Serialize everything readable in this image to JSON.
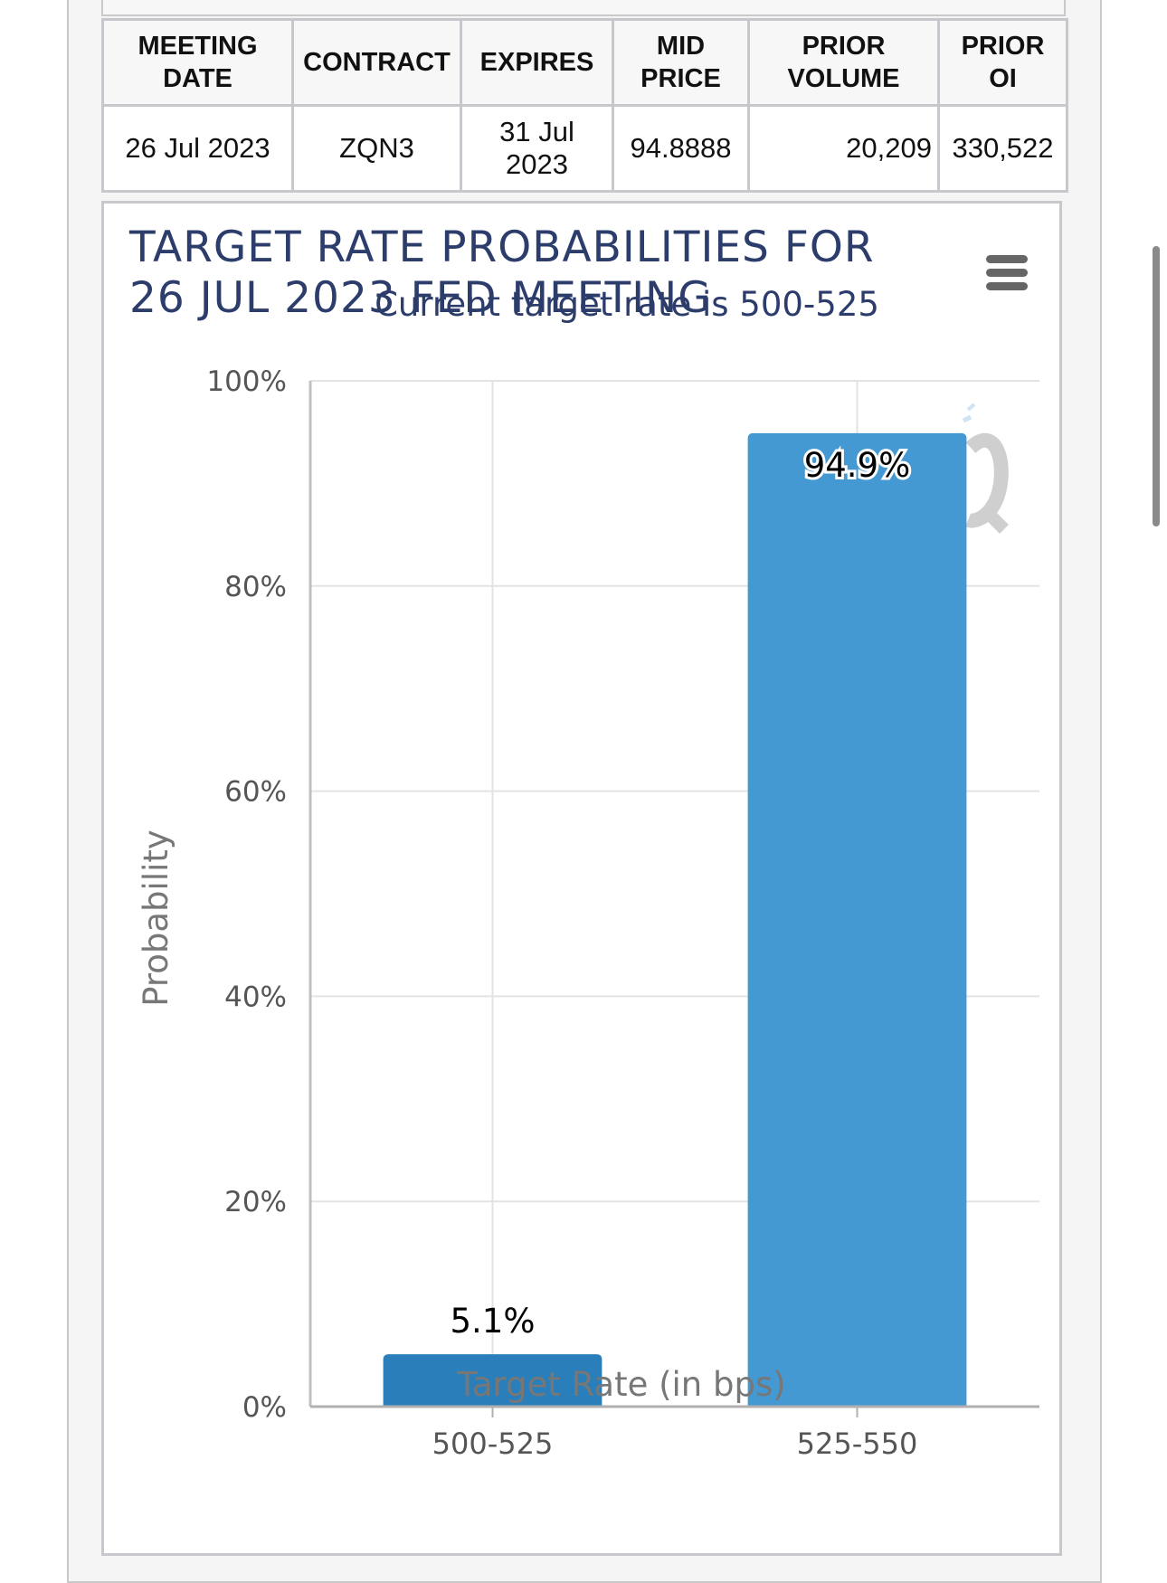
{
  "table": {
    "headers": [
      [
        "MEETING",
        "DATE"
      ],
      [
        "CONTRACT"
      ],
      [
        "EXPIRES"
      ],
      [
        "MID",
        "PRICE"
      ],
      [
        "PRIOR",
        "VOLUME"
      ],
      [
        "PRIOR",
        "OI"
      ]
    ],
    "row": {
      "meeting_date": "26 Jul 2023",
      "contract": "ZQN3",
      "expires_line1": "31 Jul",
      "expires_line2": "2023",
      "mid_price": "94.8888",
      "prior_volume": "20,209",
      "prior_oi": "330,522"
    }
  },
  "chart_menu_icon": "hamburger-menu-icon",
  "chart_data": {
    "type": "bar",
    "title_lines": [
      "TARGET RATE PROBABILITIES FOR",
      "26 JUL 2023 FED MEETING"
    ],
    "subtitle": "Current target rate is 500-525",
    "categories": [
      "500-525",
      "525-550"
    ],
    "values": [
      5.1,
      94.9
    ],
    "data_labels": [
      "5.1%",
      "94.9%"
    ],
    "xlabel": "Target Rate (in bps)",
    "ylabel": "Probability",
    "ylim": [
      0,
      100
    ],
    "yticks": [
      0,
      20,
      40,
      60,
      80,
      100
    ],
    "ytick_format": "%",
    "bar_colors": [
      "#2a7fba",
      "#4499d3"
    ],
    "grid": true,
    "legend": "none"
  }
}
